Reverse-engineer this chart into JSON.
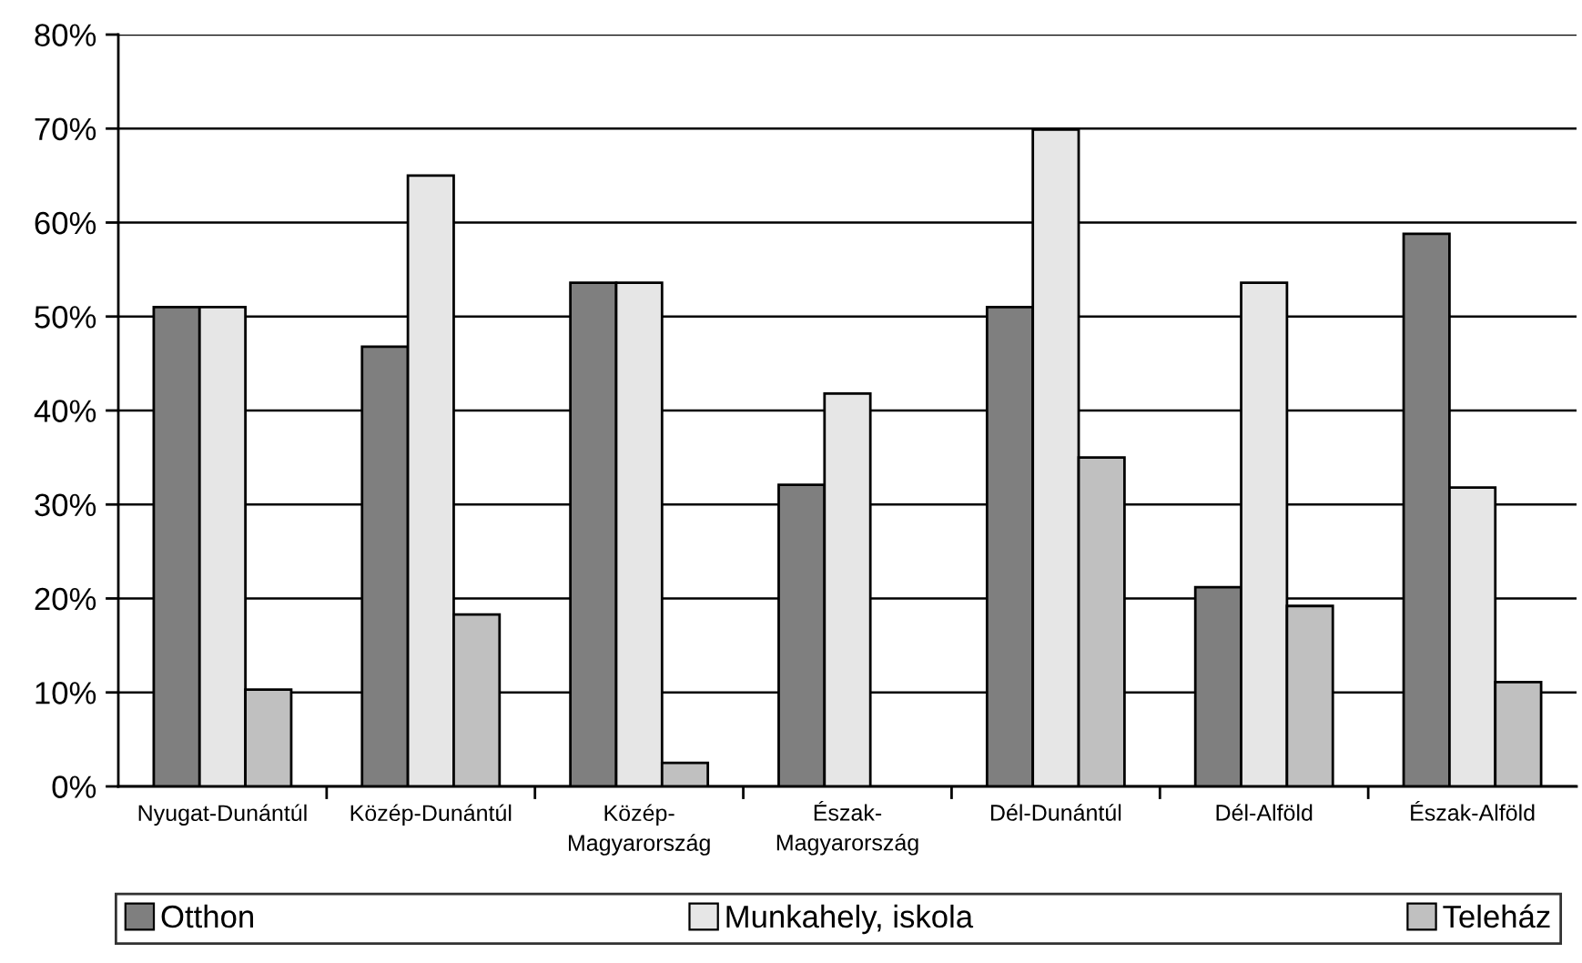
{
  "chart_data": {
    "type": "bar",
    "categories": [
      "Nyugat-Dunántúl",
      "Közép-Dunántúl",
      "Közép-\nMagyarország",
      "Észak-\nMagyarország",
      "Dél-Dunántúl",
      "Dél-Alföld",
      "Észak-Alföld"
    ],
    "series": [
      {
        "name": "Otthon",
        "color": "#7f7f7f",
        "values": [
          51.0,
          46.8,
          53.6,
          32.1,
          51.0,
          21.2,
          58.8
        ]
      },
      {
        "name": "Munkahely, iskola",
        "color": "#e6e6e6",
        "values": [
          51.0,
          65.0,
          53.6,
          41.8,
          69.9,
          53.6,
          31.8
        ]
      },
      {
        "name": "Teleház",
        "color": "#c0c0c0",
        "values": [
          10.3,
          18.3,
          2.5,
          null,
          35.0,
          19.2,
          11.1
        ]
      }
    ],
    "ylim": [
      0,
      80
    ],
    "yticks": [
      {
        "value": 0,
        "label": "0%"
      },
      {
        "value": 10,
        "label": "10%"
      },
      {
        "value": 20,
        "label": "20%"
      },
      {
        "value": 30,
        "label": "30%"
      },
      {
        "value": 40,
        "label": "40%"
      },
      {
        "value": 50,
        "label": "50%"
      },
      {
        "value": 60,
        "label": "60%"
      },
      {
        "value": 70,
        "label": "70%"
      },
      {
        "value": 80,
        "label": "80%"
      }
    ],
    "grid": "y",
    "legend": "bottom"
  }
}
